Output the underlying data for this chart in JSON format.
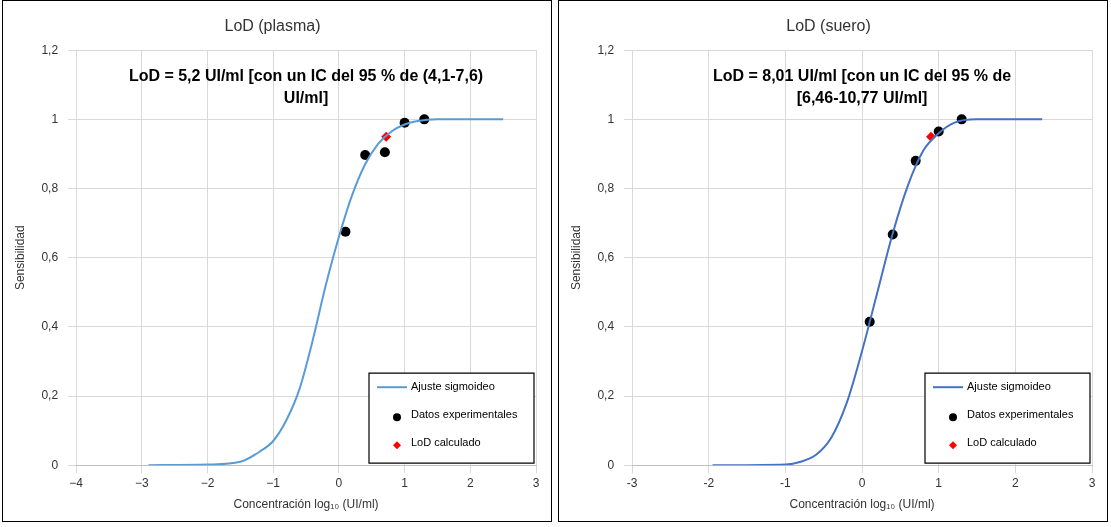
{
  "chart_data": [
    {
      "type": "scatter",
      "title": "LoD (plasma)",
      "xlabel": "Concentración log₁₀ (UI/ml)",
      "ylabel": "Sensibilidad",
      "annotations": [
        "LoD = 5,2 UI/ml [con un IC del 95 % de (4,1-7,6) UI/ml]"
      ],
      "xlim": [
        -4,
        3
      ],
      "xticks": [
        {
          "value": -4,
          "label": "−4"
        },
        {
          "value": -3,
          "label": "−3"
        },
        {
          "value": -2,
          "label": "−2"
        },
        {
          "value": -1,
          "label": "−1"
        },
        {
          "value": 0,
          "label": "0"
        },
        1,
        2,
        3
      ],
      "ylim": [
        0,
        1.2
      ],
      "yticks": [
        {
          "value": 0,
          "label": "0"
        },
        {
          "value": 0.2,
          "label": "0,2"
        },
        {
          "value": 0.4,
          "label": "0,4"
        },
        {
          "value": 0.6,
          "label": "0,6"
        },
        {
          "value": 0.8,
          "label": "0,8"
        },
        1,
        {
          "value": 1.2,
          "label": "1,2"
        }
      ],
      "grid": true,
      "legend": "bottom right",
      "series": [
        {
          "name": "Ajuste sigmoideo",
          "type": "line",
          "marker": "none",
          "color": "#5b9bd5",
          "x": [
            -2.9,
            -2,
            -1.5,
            -1.2,
            -1,
            -0.8,
            -0.6,
            -0.4,
            -0.2,
            0,
            0.2,
            0.4,
            0.6,
            0.8,
            1,
            1.2,
            1.5,
            2,
            2.5
          ],
          "values": [
            0,
            0.002,
            0.01,
            0.04,
            0.07,
            0.13,
            0.22,
            0.36,
            0.52,
            0.66,
            0.78,
            0.87,
            0.93,
            0.965,
            0.985,
            0.995,
            1,
            1,
            1
          ]
        },
        {
          "name": "Datos experimentales",
          "type": "scatter",
          "marker": "circle",
          "color": "#000000",
          "x": [
            0.1,
            0.4,
            0.7,
            1.0,
            1.3
          ],
          "values": [
            0.675,
            0.897,
            0.905,
            0.99,
            1.0
          ]
        },
        {
          "name": "LoD calculado",
          "type": "scatter",
          "marker": "diamond",
          "color": "#ff0000",
          "x": [
            0.72
          ],
          "values": [
            0.95
          ]
        }
      ]
    },
    {
      "type": "scatter",
      "title": "LoD (suero)",
      "xlabel": "Concentración log₁₀ (UI/ml)",
      "ylabel": "Sensibilidad",
      "annotations": [
        "LoD = 8,01 UI/ml [con un IC del 95 % de [6,46-10,77 UI/ml]"
      ],
      "xlim": [
        -3,
        3
      ],
      "xticks": [
        -3,
        -2,
        -1,
        {
          "value": 0,
          "label": "0"
        },
        1,
        2,
        3
      ],
      "ylim": [
        0,
        1.2
      ],
      "yticks": [
        {
          "value": 0,
          "label": "0"
        },
        {
          "value": 0.2,
          "label": "0,2"
        },
        {
          "value": 0.4,
          "label": "0,4"
        },
        {
          "value": 0.6,
          "label": "0,6"
        },
        {
          "value": 0.8,
          "label": "0,8"
        },
        1,
        {
          "value": 1.2,
          "label": "1,2"
        }
      ],
      "grid": true,
      "legend": "bottom right",
      "series": [
        {
          "name": "Ajuste sigmoideo",
          "type": "line",
          "marker": "none",
          "color": "#4472c4",
          "x": [
            -1.95,
            -1,
            -0.8,
            -0.6,
            -0.4,
            -0.2,
            0,
            0.2,
            0.4,
            0.6,
            0.8,
            1,
            1.2,
            1.5,
            2,
            2.35
          ],
          "values": [
            0,
            0.002,
            0.01,
            0.03,
            0.08,
            0.18,
            0.33,
            0.5,
            0.67,
            0.81,
            0.91,
            0.96,
            0.99,
            1,
            1,
            1
          ]
        },
        {
          "name": "Datos experimentales",
          "type": "scatter",
          "marker": "circle",
          "color": "#000000",
          "x": [
            0.1,
            0.4,
            0.7,
            1.0,
            1.3
          ],
          "values": [
            0.415,
            0.667,
            0.88,
            0.965,
            1.0
          ]
        },
        {
          "name": "LoD calculado",
          "type": "scatter",
          "marker": "diamond",
          "color": "#ff0000",
          "x": [
            0.9
          ],
          "values": [
            0.95
          ]
        }
      ]
    }
  ]
}
